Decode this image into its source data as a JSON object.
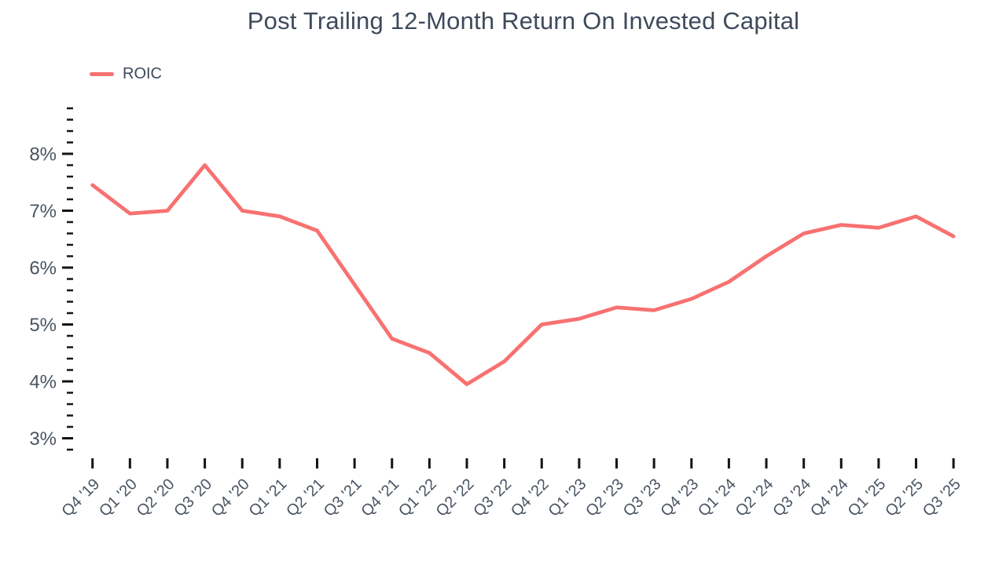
{
  "chart": {
    "title": "Post Trailing 12-Month Return On Invested Capital",
    "legend": [
      {
        "label": "ROIC"
      }
    ],
    "colors": {
      "line": "#F87171",
      "title_text": "#3E4A5B",
      "axis_text": "#4A5462",
      "tick": "#141414",
      "background": "#FFFFFF"
    }
  },
  "chart_data": {
    "type": "line",
    "title": "Post Trailing 12-Month Return On Invested Capital",
    "categories": [
      "Q4 '19",
      "Q1 '20",
      "Q2 '20",
      "Q3 '20",
      "Q4 '20",
      "Q1 '21",
      "Q2 '21",
      "Q3 '21",
      "Q4 '21",
      "Q1 '22",
      "Q2 '22",
      "Q3 '22",
      "Q4 '22",
      "Q1 '23",
      "Q2 '23",
      "Q3 '23",
      "Q4 '23",
      "Q1 '24",
      "Q2 '24",
      "Q3 '24",
      "Q4 '24",
      "Q1 '25",
      "Q2 '25",
      "Q3 '25"
    ],
    "series": [
      {
        "name": "ROIC",
        "values": [
          7.45,
          6.95,
          7.0,
          7.8,
          7.0,
          6.9,
          6.65,
          5.7,
          4.75,
          4.5,
          3.95,
          4.35,
          5.0,
          5.1,
          5.3,
          5.25,
          5.45,
          5.75,
          6.2,
          6.6,
          6.75,
          6.7,
          6.9,
          6.55
        ]
      }
    ],
    "xlabel": "",
    "ylabel": "",
    "unit": "%",
    "y_major_ticks": [
      8,
      7,
      6,
      5,
      4,
      3
    ],
    "y_tick_labels": [
      "8%",
      "7%",
      "6%",
      "5%",
      "4%",
      "3%"
    ],
    "ylim": [
      2.8,
      8.8
    ],
    "y_minor_step": 0.2,
    "grid": false,
    "legend_position": "top-left"
  }
}
